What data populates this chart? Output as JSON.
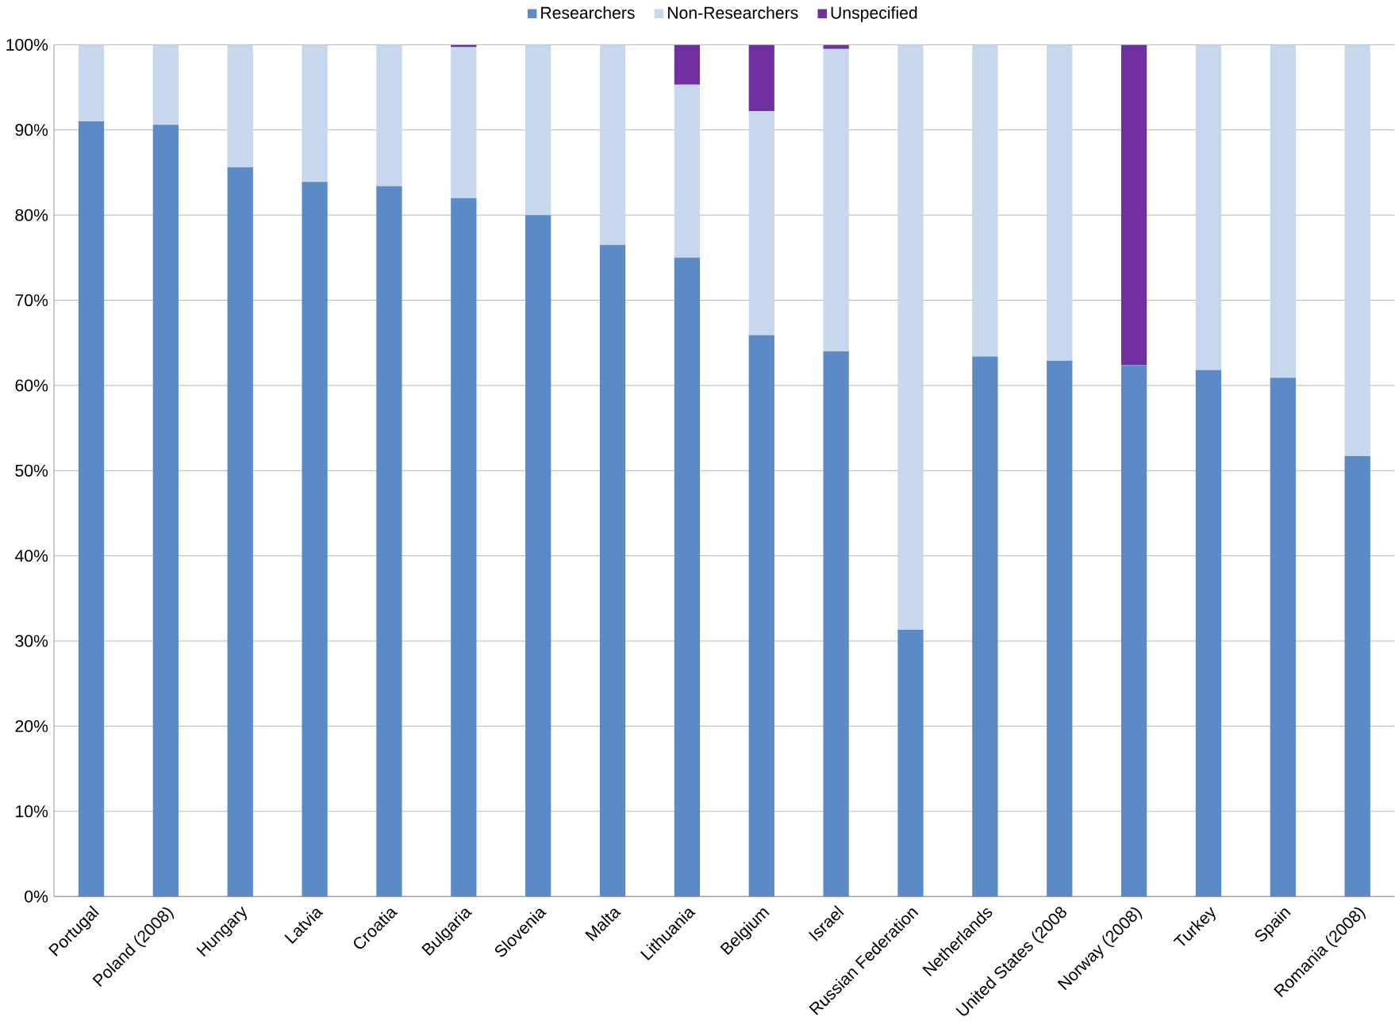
{
  "chart_data": {
    "type": "bar",
    "stacked": true,
    "legend": "top",
    "grid": "y",
    "categories": [
      "Portugal",
      "Poland (2008)",
      "Hungary",
      "Latvia",
      "Croatia",
      "Bulgaria",
      "Slovenia",
      "Malta",
      "Lithuania",
      "Belgium",
      "Israel",
      "Russian Federation",
      "Netherlands",
      "United States (2008",
      "Norway (2008)",
      "Turkey",
      "Spain",
      "Romania (2008)"
    ],
    "series": [
      {
        "name": "Researchers",
        "color": "#5b8ac6",
        "values": [
          91.0,
          90.6,
          85.6,
          83.9,
          83.4,
          82,
          80,
          76.5,
          75,
          65.9,
          64.0,
          31.3,
          63.4,
          62.9,
          62.4,
          61.8,
          60.9,
          51.7
        ]
      },
      {
        "name": "Non-Researchers",
        "color": "#c6d7ee",
        "values": [
          9.0,
          9.4,
          14.4,
          16.1,
          16.6,
          17.7,
          20,
          23.5,
          20.3,
          26.3,
          35.5,
          68.7,
          36.6,
          37.1,
          0,
          38.2,
          39.1,
          48.3
        ]
      },
      {
        "name": "Unspecified",
        "color": "#7030a0",
        "values": [
          0,
          0,
          0,
          0,
          0,
          0.3,
          0,
          0,
          4.7,
          7.8,
          0.5,
          0,
          0,
          0,
          37.6,
          0,
          0,
          0
        ]
      }
    ],
    "ylim": [
      0,
      100
    ],
    "yticks": [
      {
        "value": 0,
        "label": "0%"
      },
      {
        "value": 10,
        "label": "10%"
      },
      {
        "value": 20,
        "label": "20%"
      },
      {
        "value": 30,
        "label": "30%"
      },
      {
        "value": 40,
        "label": "40%"
      },
      {
        "value": 50,
        "label": "50%"
      },
      {
        "value": 60,
        "label": "60%"
      },
      {
        "value": 70,
        "label": "70%"
      },
      {
        "value": 80,
        "label": "80%"
      },
      {
        "value": 90,
        "label": "90%"
      },
      {
        "value": 100,
        "label": "100%"
      }
    ]
  }
}
